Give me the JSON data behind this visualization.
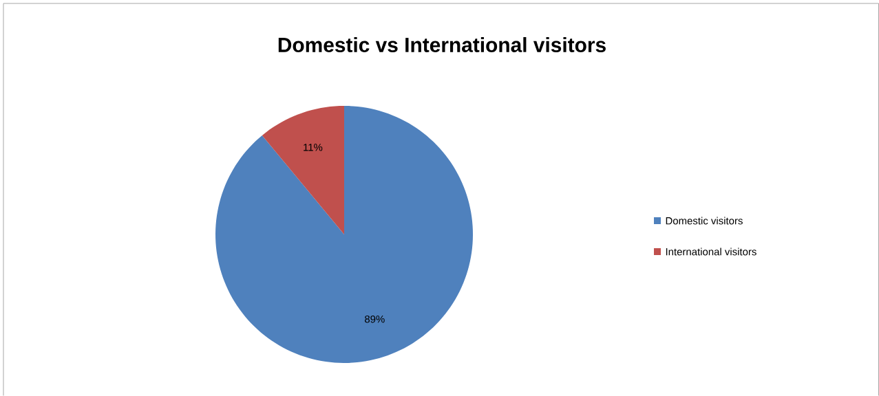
{
  "chart_data": {
    "type": "pie",
    "title": "Domestic vs International visitors",
    "categories": [
      "Domestic visitors",
      "International visitors"
    ],
    "values": [
      89,
      11
    ],
    "value_labels": [
      "89%",
      "11%"
    ],
    "colors": [
      "#4f81bd",
      "#c0504d"
    ],
    "legend": "right"
  }
}
